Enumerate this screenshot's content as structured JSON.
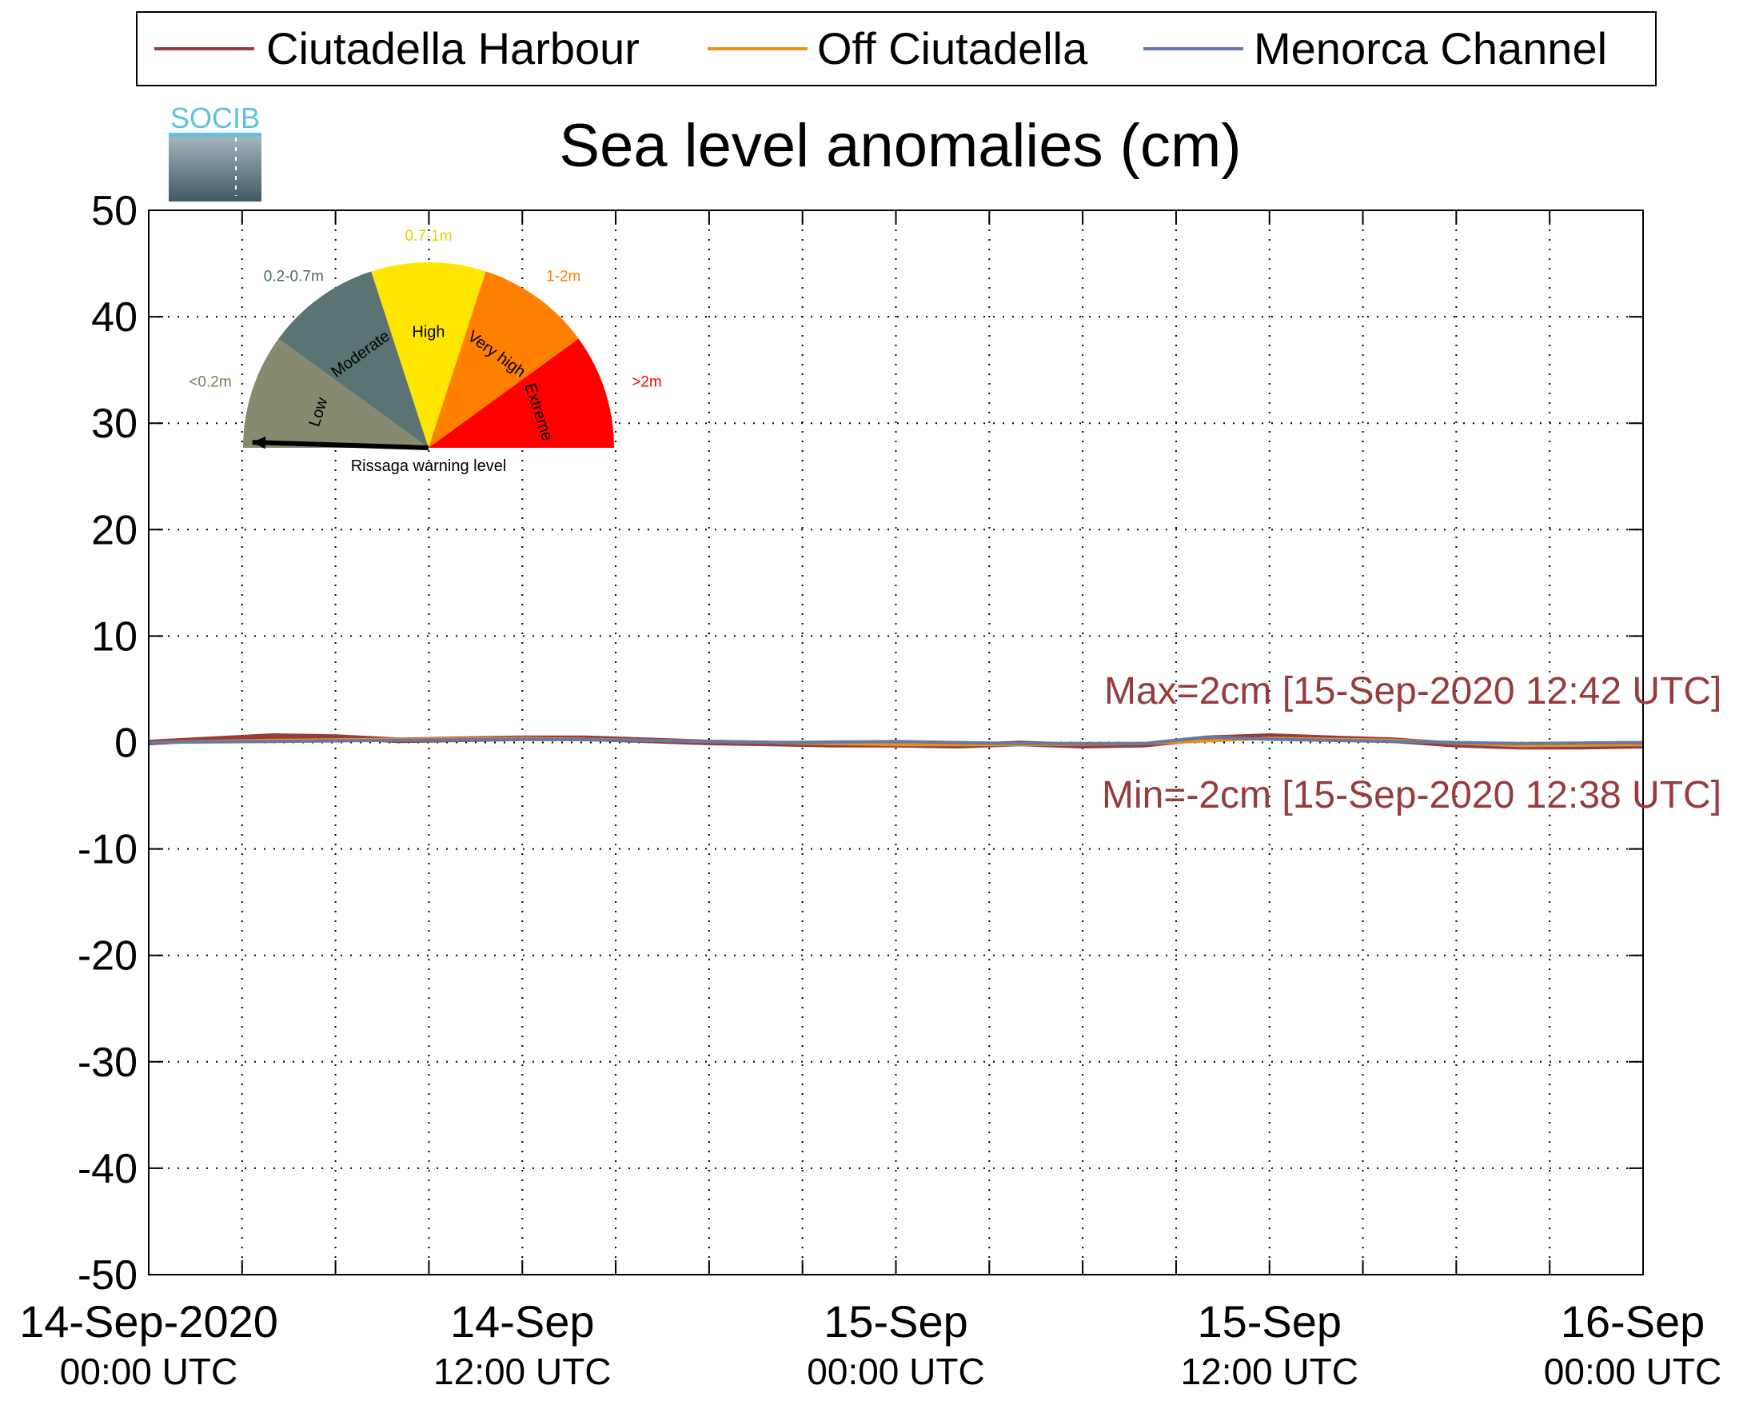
{
  "chart_data": {
    "type": "line",
    "title": "Sea level anomalies (cm)",
    "ylim": [
      -50,
      50
    ],
    "yticks": [
      "50",
      "40",
      "30",
      "20",
      "10",
      "0",
      "-10",
      "-20",
      "-30",
      "-40",
      "-50"
    ],
    "xlim": [
      "2020-09-14 00:00",
      "2020-09-16 00:00"
    ],
    "xticks_major": [
      {
        "line1": "14-Sep-2020",
        "line2": "00:00 UTC"
      },
      {
        "line1": "14-Sep",
        "line2": "12:00 UTC"
      },
      {
        "line1": "15-Sep",
        "line2": "00:00 UTC"
      },
      {
        "line1": "15-Sep",
        "line2": "12:00 UTC"
      },
      {
        "line1": "16-Sep",
        "line2": "00:00 UTC"
      }
    ],
    "grid": true,
    "legend_position": "top",
    "series": [
      {
        "name": "Ciutadella Harbour",
        "color": "#963c3c",
        "x": [
          "2020-09-14 00:00",
          "2020-09-14 02:00",
          "2020-09-14 04:00",
          "2020-09-14 06:00",
          "2020-09-14 08:00",
          "2020-09-14 10:00",
          "2020-09-14 12:00",
          "2020-09-14 14:00",
          "2020-09-14 16:00",
          "2020-09-14 18:00",
          "2020-09-14 20:00",
          "2020-09-14 22:00",
          "2020-09-15 00:00",
          "2020-09-15 02:00",
          "2020-09-15 04:00",
          "2020-09-15 06:00",
          "2020-09-15 08:00",
          "2020-09-15 10:00",
          "2020-09-15 12:00",
          "2020-09-15 14:00",
          "2020-09-15 16:00",
          "2020-09-15 18:00",
          "2020-09-15 20:00",
          "2020-09-15 22:00",
          "2020-09-16 00:00"
        ],
        "y": [
          0,
          0.3,
          0.6,
          0.5,
          0.2,
          0.3,
          0.4,
          0.4,
          0.2,
          0,
          -0.1,
          -0.2,
          -0.2,
          -0.3,
          -0.1,
          -0.3,
          -0.2,
          0.4,
          0.6,
          0.4,
          0.2,
          -0.2,
          -0.4,
          -0.4,
          -0.3
        ]
      },
      {
        "name": "Off Ciutadella",
        "color": "#e8901c",
        "x": [
          "2020-09-14 00:00",
          "2020-09-14 04:00",
          "2020-09-14 08:00",
          "2020-09-14 12:00",
          "2020-09-14 16:00",
          "2020-09-14 20:00",
          "2020-09-15 00:00",
          "2020-09-15 04:00",
          "2020-09-15 08:00",
          "2020-09-15 12:00",
          "2020-09-15 16:00",
          "2020-09-15 20:00",
          "2020-09-16 00:00"
        ],
        "y": [
          0,
          0.2,
          0.3,
          0.4,
          0.2,
          0,
          -0.2,
          -0.2,
          -0.1,
          0.4,
          0.2,
          -0.3,
          -0.2
        ]
      },
      {
        "name": "Menorca Channel",
        "color": "#6878a0",
        "x": [
          "2020-09-14 00:00",
          "2020-09-14 04:00",
          "2020-09-14 08:00",
          "2020-09-14 12:00",
          "2020-09-14 16:00",
          "2020-09-14 20:00",
          "2020-09-15 00:00",
          "2020-09-15 04:00",
          "2020-09-15 08:00",
          "2020-09-15 10:00",
          "2020-09-15 12:00",
          "2020-09-15 16:00",
          "2020-09-15 20:00",
          "2020-09-16 00:00"
        ],
        "y": [
          0,
          0.1,
          0.2,
          0.3,
          0.2,
          0,
          0.1,
          -0.1,
          -0.1,
          0.5,
          0.3,
          0.1,
          -0.1,
          0
        ]
      }
    ],
    "annotations": [
      {
        "text": "Max=2cm [15-Sep-2020 12:42 UTC]",
        "color": "#963c3c"
      },
      {
        "text": "Min=-2cm [15-Sep-2020 12:38 UTC]",
        "color": "#963c3c"
      }
    ]
  },
  "logo": {
    "text": "SOCIB"
  },
  "gauge": {
    "caption": "Rissaga warning level",
    "current_level": "Low",
    "segments": [
      {
        "name": "Low",
        "range": "<0.2m",
        "color": "#878a6e",
        "range_color": "#7a7d5c"
      },
      {
        "name": "Moderate",
        "range": "0.2-0.7m",
        "color": "#5a7474",
        "range_color": "#4d6868"
      },
      {
        "name": "High",
        "range": "0.7-1m",
        "color": "#ffe600",
        "range_color": "#e8d100"
      },
      {
        "name": "Very high",
        "range": "1-2m",
        "color": "#ff7f00",
        "range_color": "#ff7f00"
      },
      {
        "name": "Extreme",
        "range": ">2m",
        "color": "#ff0000",
        "range_color": "#ff0000"
      }
    ]
  }
}
